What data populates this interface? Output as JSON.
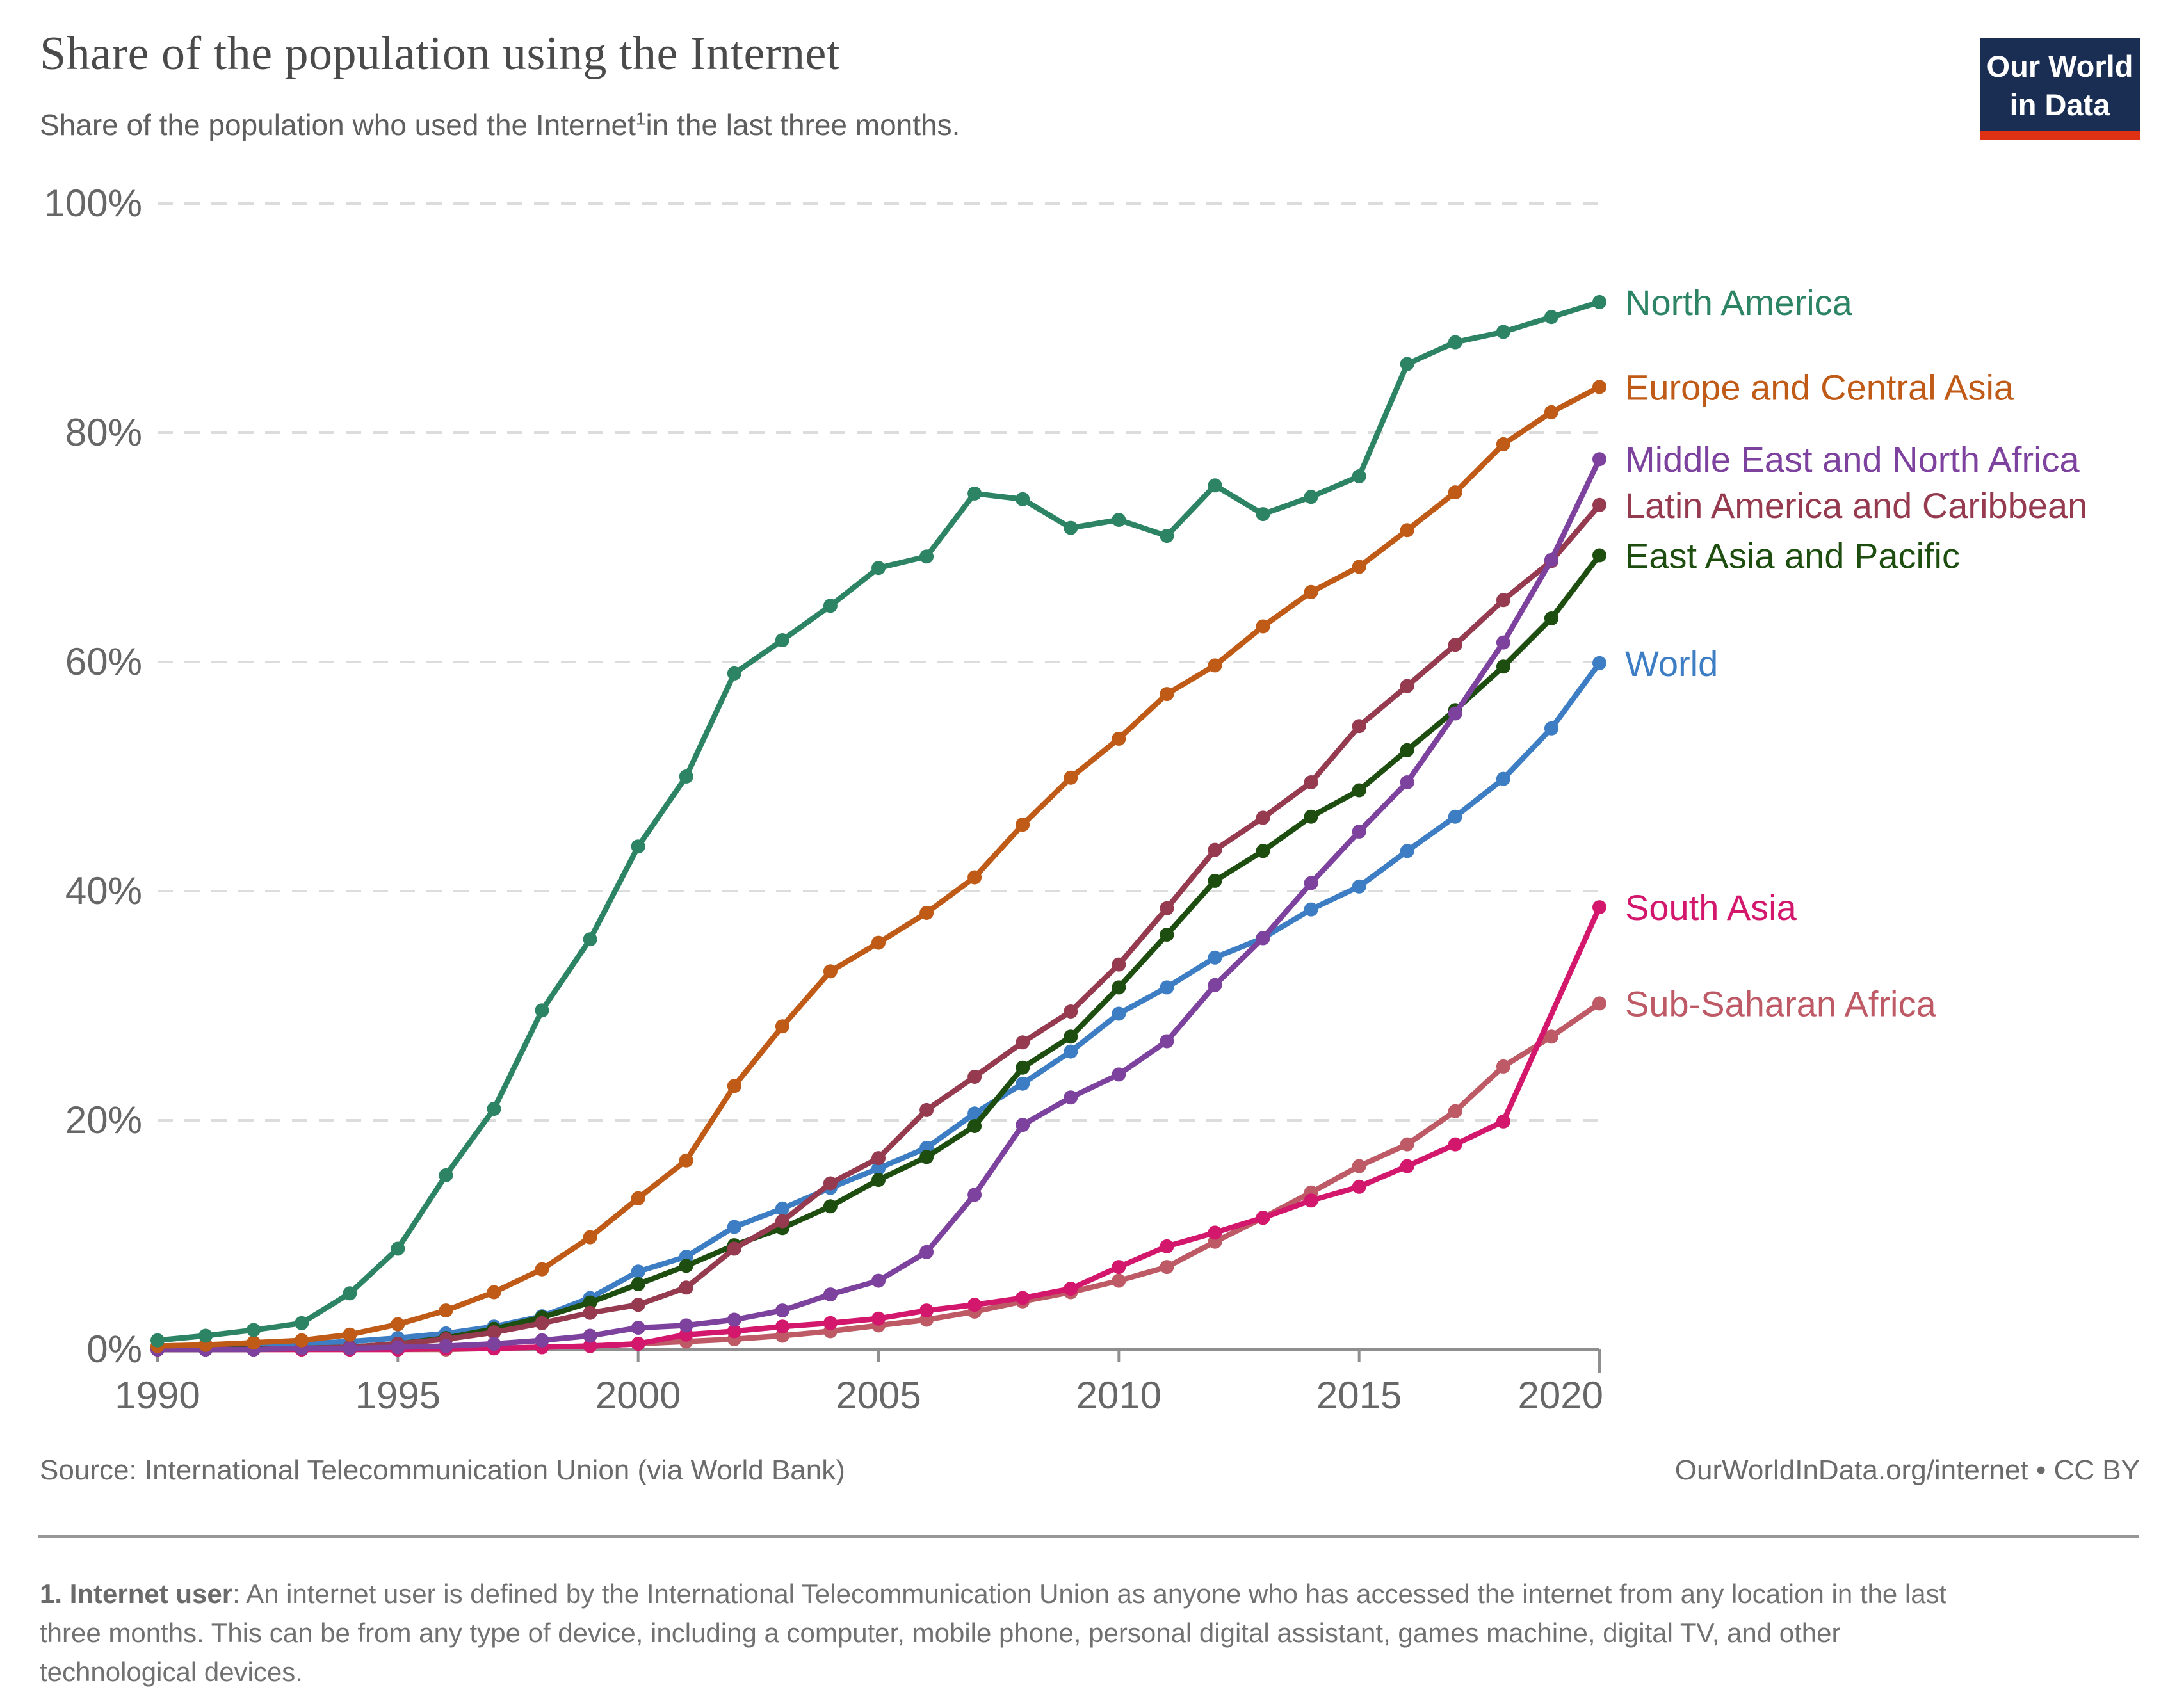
{
  "header": {
    "title": "Share of the population using the Internet",
    "subtitle_pre": "Share of the population who used the Internet",
    "subtitle_sup": "1",
    "subtitle_post": "in the last three months.",
    "logo_line1": "Our World",
    "logo_line2": "in Data"
  },
  "chart_data": {
    "type": "line",
    "title": "Share of the population using the Internet",
    "xlabel": "",
    "ylabel": "",
    "ylim": [
      0,
      100
    ],
    "grid": "horizontal-dashed",
    "legend_position": "right-end-labels",
    "x_years": [
      1990,
      1991,
      1992,
      1993,
      1994,
      1995,
      1996,
      1997,
      1998,
      1999,
      2000,
      2001,
      2002,
      2003,
      2004,
      2005,
      2006,
      2007,
      2008,
      2009,
      2010,
      2011,
      2012,
      2013,
      2014,
      2015,
      2016,
      2017,
      2018,
      2019,
      2020
    ],
    "x_ticks": [
      1990,
      1995,
      2000,
      2005,
      2010,
      2015,
      2020
    ],
    "y_ticks": [
      {
        "value": 0,
        "label": "0%"
      },
      {
        "value": 20,
        "label": "20%"
      },
      {
        "value": 40,
        "label": "40%"
      },
      {
        "value": 60,
        "label": "60%"
      },
      {
        "value": 80,
        "label": "80%"
      },
      {
        "value": 100,
        "label": "100%"
      }
    ],
    "series": [
      {
        "name": "North America",
        "color": "#2C8465",
        "values": [
          0.8,
          1.2,
          1.7,
          2.3,
          4.9,
          8.8,
          15.2,
          21.0,
          29.6,
          35.8,
          43.9,
          50.0,
          59.0,
          61.9,
          64.9,
          68.2,
          69.2,
          74.7,
          74.2,
          71.7,
          72.4,
          71.0,
          75.4,
          72.9,
          74.4,
          76.2,
          86.0,
          87.9,
          88.8,
          90.1,
          91.4
        ]
      },
      {
        "name": "Europe and Central Asia",
        "color": "#C05A17",
        "values": [
          0.3,
          0.4,
          0.6,
          0.8,
          1.3,
          2.2,
          3.4,
          5.0,
          7.0,
          9.8,
          13.2,
          16.5,
          23.0,
          28.2,
          33.0,
          35.5,
          38.1,
          41.2,
          45.8,
          49.9,
          53.3,
          57.2,
          59.7,
          63.1,
          66.1,
          68.3,
          71.5,
          74.8,
          79.0,
          81.8,
          84.0
        ]
      },
      {
        "name": "Middle East and North Africa",
        "color": "#7D429E",
        "values": [
          0.0,
          0.0,
          0.0,
          0.1,
          0.1,
          0.2,
          0.3,
          0.5,
          0.8,
          1.2,
          1.9,
          2.1,
          2.6,
          3.4,
          4.8,
          6.0,
          8.5,
          13.5,
          19.6,
          22.0,
          24.0,
          26.9,
          31.8,
          35.9,
          40.7,
          45.2,
          49.5,
          55.5,
          61.7,
          68.9,
          77.7
        ]
      },
      {
        "name": "Latin America and Caribbean",
        "color": "#953A4F",
        "values": [
          0.0,
          0.0,
          0.0,
          0.1,
          0.2,
          0.5,
          0.9,
          1.5,
          2.3,
          3.2,
          3.9,
          5.4,
          8.8,
          11.2,
          14.5,
          16.7,
          20.9,
          23.8,
          26.8,
          29.5,
          33.6,
          38.5,
          43.6,
          46.4,
          49.5,
          54.4,
          57.9,
          61.5,
          65.4,
          68.8,
          73.7
        ]
      },
      {
        "name": "East Asia and Pacific",
        "color": "#1D4E10",
        "values": [
          0.0,
          0.0,
          0.1,
          0.1,
          0.2,
          0.5,
          1.0,
          1.8,
          2.8,
          4.1,
          5.7,
          7.3,
          9.1,
          10.6,
          12.5,
          14.8,
          16.8,
          19.5,
          24.6,
          27.3,
          31.6,
          36.2,
          40.9,
          43.5,
          46.5,
          48.8,
          52.3,
          55.8,
          59.6,
          63.8,
          69.3
        ]
      },
      {
        "name": "World",
        "color": "#3C7DC4",
        "values": [
          0.2,
          0.3,
          0.4,
          0.5,
          0.7,
          1.0,
          1.4,
          2.0,
          2.9,
          4.5,
          6.8,
          8.1,
          10.7,
          12.3,
          14.1,
          15.8,
          17.6,
          20.6,
          23.2,
          26.0,
          29.3,
          31.6,
          34.2,
          35.9,
          38.4,
          40.4,
          43.5,
          46.5,
          49.8,
          54.2,
          59.9
        ]
      },
      {
        "name": "South Asia",
        "color": "#D2176C",
        "values": [
          0.0,
          0.0,
          0.0,
          0.0,
          0.0,
          0.0,
          0.1,
          0.1,
          0.2,
          0.3,
          0.5,
          1.3,
          1.6,
          2.0,
          2.3,
          2.7,
          3.4,
          3.9,
          4.5,
          5.3,
          7.2,
          9.0,
          10.2,
          11.5,
          13.0,
          14.2,
          16.0,
          17.9,
          19.9,
          null,
          38.6
        ]
      },
      {
        "name": "Sub-Saharan Africa",
        "color": "#BE5A66",
        "values": [
          0.0,
          0.0,
          0.0,
          0.0,
          0.0,
          0.0,
          0.0,
          0.1,
          0.2,
          0.3,
          0.5,
          0.7,
          0.9,
          1.2,
          1.6,
          2.1,
          2.6,
          3.3,
          4.2,
          5.0,
          6.0,
          7.2,
          9.4,
          11.5,
          13.7,
          16.0,
          17.9,
          20.8,
          24.7,
          27.3,
          30.2
        ]
      }
    ]
  },
  "footer": {
    "source": "Source: International Telecommunication Union (via World Bank)",
    "link_text": "OurWorldInData.org/internet",
    "separator": " • ",
    "license": "CC BY",
    "note_label": "1. Internet user",
    "note_text": ": An internet user is defined by the International Telecommunication Union as anyone who has accessed the internet from any location in the last three months. This can be from any type of device, including a computer, mobile phone, personal digital assistant, games machine, digital TV, and other technological devices."
  }
}
